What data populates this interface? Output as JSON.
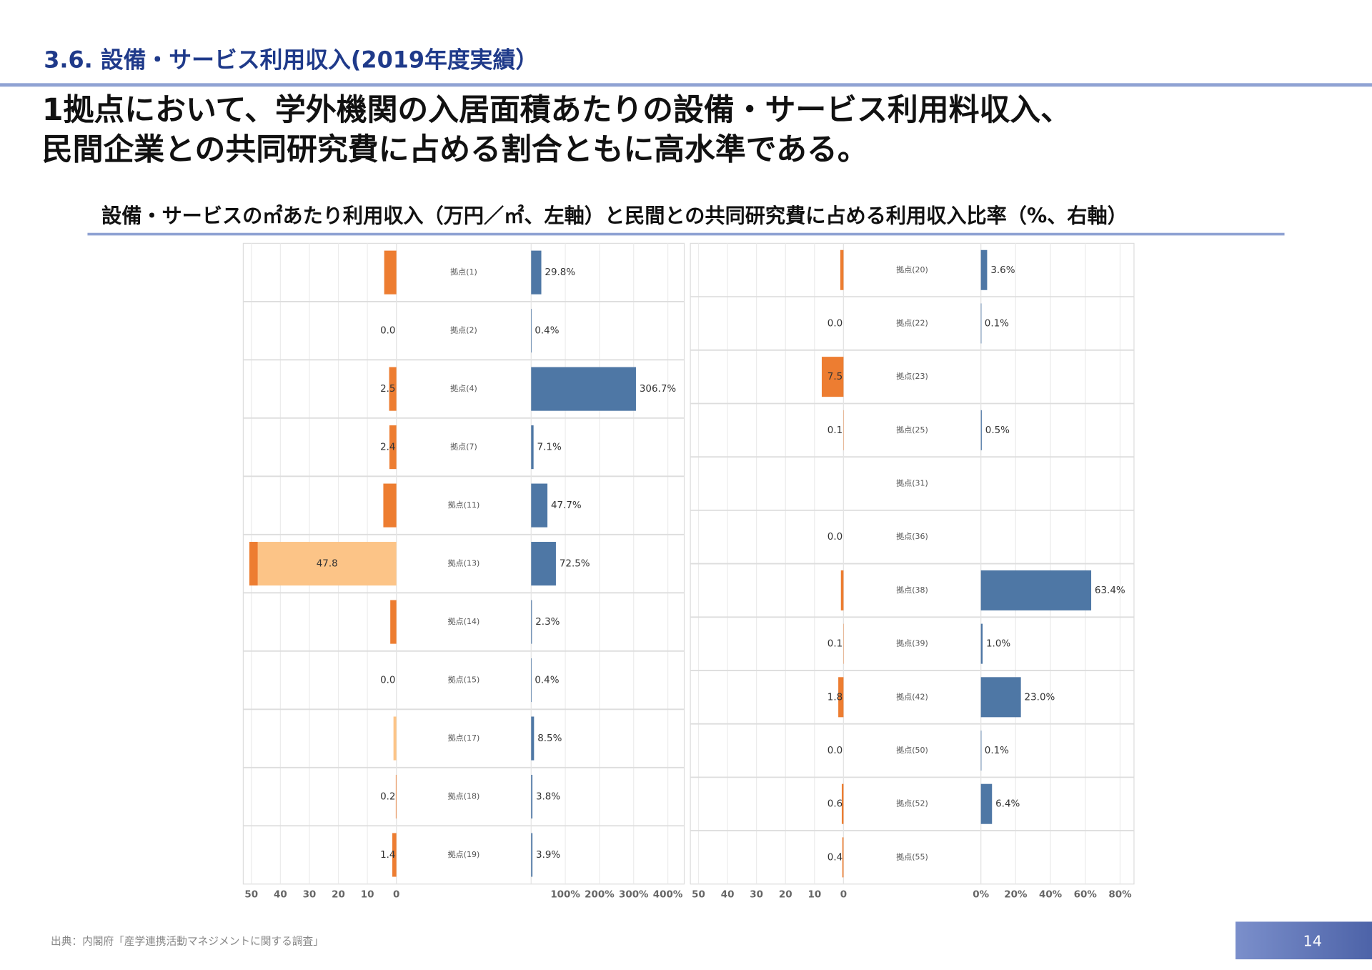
{
  "header": {
    "section": "3.6. 設備・サービス利用収入(2019年度実績）",
    "headline": [
      "1拠点において、学外機関の入居面積あたりの設備・サービス利用料収入、",
      "民間企業との共同研究費に占める割合ともに高水準である。"
    ],
    "chart_title": "設備・サービスの㎡あたり利用収入（万円／㎡、左軸）と民間との共同研究費に占める利用収入比率（%、右軸）"
  },
  "chart_data": [
    {
      "type": "bar",
      "grid": true,
      "categories": [
        "拠点(1)",
        "拠点(2)",
        "拠点(4)",
        "拠点(7)",
        "拠点(11)",
        "拠点(13)",
        "拠点(14)",
        "拠点(15)",
        "拠点(17)",
        "拠点(18)",
        "拠点(19)"
      ],
      "left": {
        "xlim": [
          52.5,
          0
        ],
        "xticks": [
          50,
          40,
          30,
          20,
          10,
          0
        ],
        "series": [
          {
            "color": "#fcc487",
            "values": [
              null,
              null,
              null,
              null,
              null,
              47.8,
              null,
              null,
              1.0,
              null,
              null
            ],
            "value_labels": [
              null,
              null,
              null,
              null,
              null,
              "47.8",
              null,
              null,
              null,
              null,
              null
            ]
          },
          {
            "color": "#ed7d31",
            "values": [
              4.2,
              0,
              2.5,
              2.4,
              4.5,
              2.9,
              2.1,
              0,
              null,
              0.2,
              1.4
            ],
            "value_labels": [
              null,
              "0.0",
              "2.5",
              "2.4",
              null,
              null,
              null,
              "0.0",
              null,
              "0.2",
              "1.4"
            ]
          }
        ]
      },
      "right": {
        "xlim": [
          0,
          448
        ],
        "xticks": [
          {
            "value": 100,
            "label": "100%"
          },
          {
            "value": 200,
            "label": "200%"
          },
          {
            "value": 300,
            "label": "300%"
          },
          {
            "value": 400,
            "label": "400%"
          }
        ],
        "series": [
          {
            "color": "#4e77a5",
            "values": [
              29.8,
              0.4,
              306.7,
              7.1,
              47.7,
              72.5,
              2.3,
              0.4,
              8.5,
              3.8,
              3.9
            ],
            "value_labels": [
              "29.8%",
              "0.4%",
              "306.7%",
              "7.1%",
              "47.7%",
              "72.5%",
              "2.3%",
              "0.4%",
              "8.5%",
              "3.8%",
              "3.9%"
            ]
          }
        ]
      }
    },
    {
      "type": "bar",
      "grid": true,
      "categories": [
        "拠点(20)",
        "拠点(22)",
        "拠点(23)",
        "拠点(25)",
        "拠点(31)",
        "拠点(36)",
        "拠点(38)",
        "拠点(39)",
        "拠点(42)",
        "拠点(50)",
        "拠点(52)",
        "拠点(55)"
      ],
      "left": {
        "xlim": [
          52.5,
          0
        ],
        "xticks": [
          50,
          40,
          30,
          20,
          10,
          0
        ],
        "series": [
          {
            "color": "#ed7d31",
            "values": [
              1.1,
              0,
              7.5,
              0.1,
              null,
              0,
              0.9,
              0.1,
              1.8,
              0,
              0.6,
              0.4
            ],
            "value_labels": [
              null,
              "0.0",
              "7.5",
              "0.1",
              null,
              "0.0",
              null,
              "0.1",
              "1.8",
              "0.0",
              "0.6",
              "0.4"
            ]
          }
        ]
      },
      "right": {
        "xlim": [
          0,
          88
        ],
        "xticks": [
          {
            "value": 0,
            "label": "0%"
          },
          {
            "value": 20,
            "label": "20%"
          },
          {
            "value": 40,
            "label": "40%"
          },
          {
            "value": 60,
            "label": "60%"
          },
          {
            "value": 80,
            "label": "80%"
          }
        ],
        "series": [
          {
            "color": "#4e77a5",
            "values": [
              3.6,
              0.1,
              null,
              0.5,
              null,
              null,
              63.4,
              1.0,
              23.0,
              0.1,
              6.4,
              null
            ],
            "value_labels": [
              "3.6%",
              "0.1%",
              null,
              "0.5%",
              null,
              null,
              "63.4%",
              "1.0%",
              "23.0%",
              "0.1%",
              "6.4%",
              null
            ]
          }
        ]
      }
    }
  ],
  "footer": {
    "source": "出典：内閣府「産学連携活動マネジメントに関する調査」",
    "page": 14
  }
}
